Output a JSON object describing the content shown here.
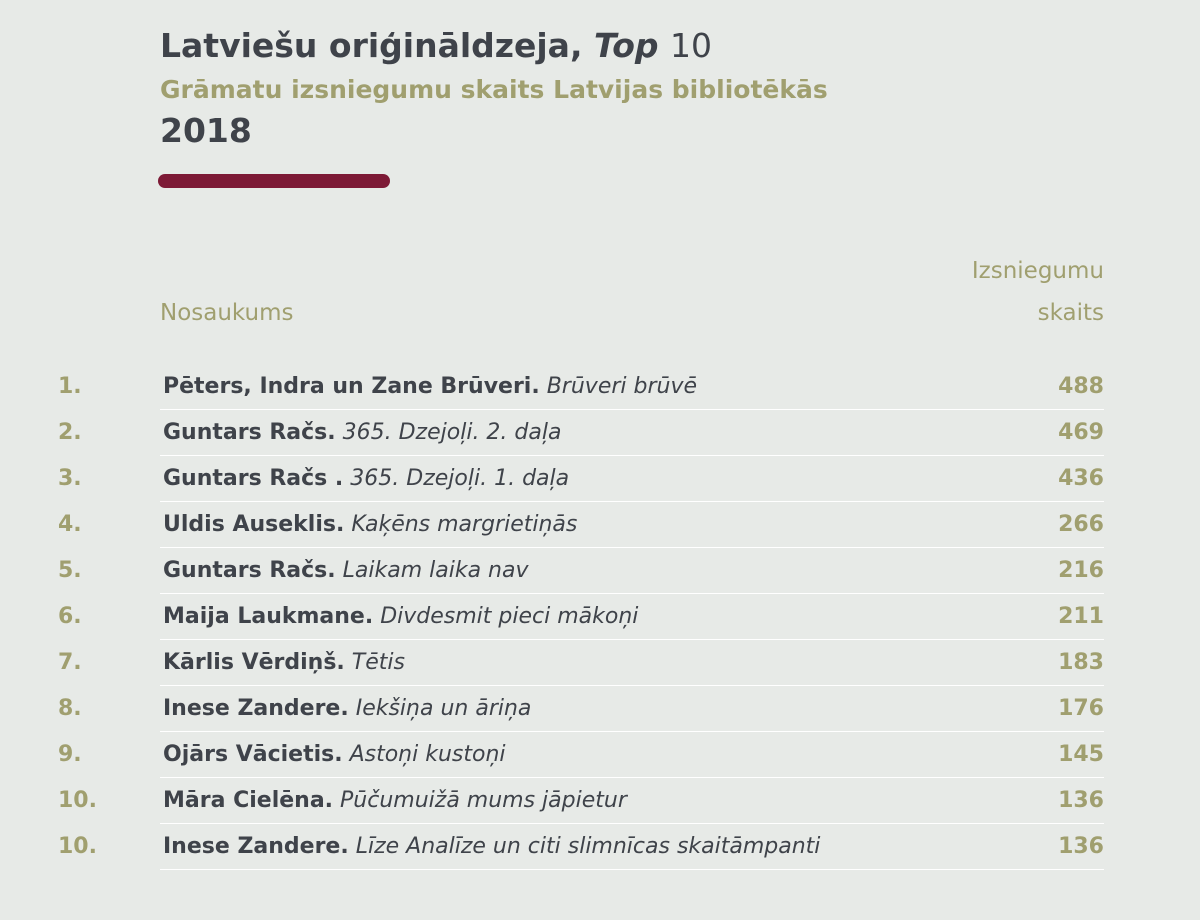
{
  "header": {
    "title_main": "Latviešu oriģināldzeja, ",
    "title_italic": "Top",
    "title_number": "10",
    "subtitle": "Grāmatu izsniegumu skaits Latvijas bibliotēkās",
    "year": "2018"
  },
  "colors": {
    "background": "#e7eae7",
    "dark_text": "#3f434a",
    "olive": "#a09f6f",
    "accent": "#7d1a36"
  },
  "chart_data": {
    "type": "table",
    "title": "Latviešu oriģināldzeja, Top 10",
    "subtitle": "Grāmatu izsniegumu skaits Latvijas bibliotēkās",
    "year": "2018",
    "columns": [
      "Nosaukums",
      "Izsniegumu skaits"
    ],
    "column_headers": {
      "name": "Nosaukums",
      "count_line1": "Izsniegumu",
      "count_line2": "skaits"
    },
    "rows": [
      {
        "rank": "1.",
        "author": "Pēters, Indra un Zane Brūveri.",
        "book": "Brūveri brūvē",
        "count": 488
      },
      {
        "rank": "2.",
        "author": "Guntars Račs.",
        "book": "365. Dzejoļi. 2. daļa",
        "count": 469
      },
      {
        "rank": "3.",
        "author": "Guntars Račs .",
        "book": "365. Dzejoļi. 1. daļa",
        "count": 436
      },
      {
        "rank": "4.",
        "author": "Uldis Auseklis.",
        "book": "Kaķēns margrietiņās",
        "count": 266
      },
      {
        "rank": "5.",
        "author": "Guntars Račs.",
        "book": "Laikam laika nav",
        "count": 216
      },
      {
        "rank": "6.",
        "author": "Maija Laukmane.",
        "book": "Divdesmit pieci mākoņi",
        "count": 211
      },
      {
        "rank": "7.",
        "author": "Kārlis Vērdiņš.",
        "book": "Tētis",
        "count": 183
      },
      {
        "rank": "8.",
        "author": "Inese Zandere.",
        "book": "Iekšiņa un āriņa",
        "count": 176
      },
      {
        "rank": "9.",
        "author": "Ojārs Vācietis.",
        "book": "Astoņi kustoņi",
        "count": 145
      },
      {
        "rank": "10.",
        "author": "Māra Cielēna.",
        "book": "Pūčumuižā mums jāpietur",
        "count": 136
      },
      {
        "rank": "10.",
        "author": "Inese Zandere.",
        "book": "Līze Analīze un citi slimnīcas skaitāmpanti",
        "count": 136
      }
    ]
  }
}
